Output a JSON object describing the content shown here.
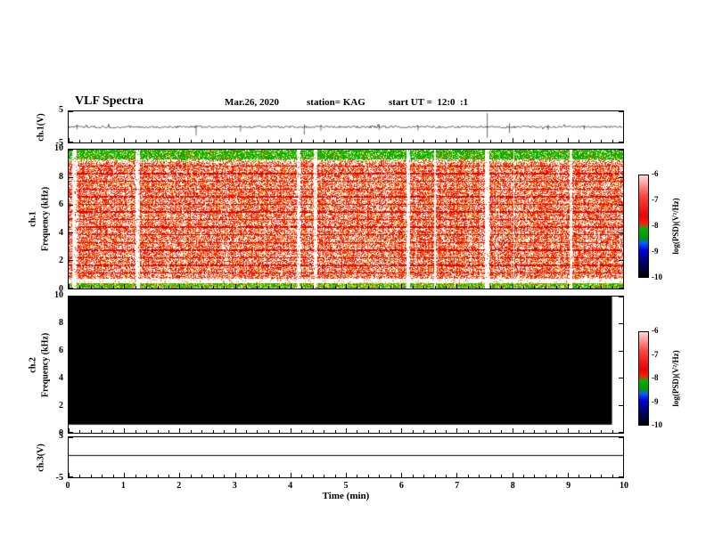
{
  "header": {
    "title": "VLF Spectra",
    "date": "Mar.26, 2020",
    "station": "station= KAG",
    "start_ut": "start UT =  12:0  :1"
  },
  "time_axis": {
    "label": "Time (min)",
    "tick_labels": [
      "0",
      "1",
      "2",
      "3",
      "4",
      "5",
      "6",
      "7",
      "8",
      "9",
      "10"
    ],
    "range": [
      0,
      10
    ],
    "minor_ticks_per_interval": 5
  },
  "panels": {
    "ch1_wave": {
      "ylabel": "ch.1(V)",
      "ytick_labels": [
        "5",
        "-5"
      ],
      "ylim": [
        -5,
        5
      ]
    },
    "ch1_spec": {
      "ylabel_channel": "ch.1",
      "ylabel_axis": "Frequency (kHz)",
      "ytick_labels": [
        "10",
        "8",
        "6",
        "4",
        "2",
        "0"
      ],
      "ylim": [
        0,
        10
      ]
    },
    "ch2_spec": {
      "ylabel_channel": "ch.2",
      "ylabel_axis": "Frequency (kHz)",
      "ytick_labels": [
        "10",
        "8",
        "6",
        "4",
        "2",
        "0"
      ],
      "ylim": [
        0,
        10
      ]
    },
    "ch3_wave": {
      "ylabel": "ch.3(V)",
      "ytick_labels": [
        "5",
        "-5"
      ],
      "ylim": [
        -5,
        5
      ]
    }
  },
  "colorbar": {
    "label": "log(PSD)(V²/Hz)",
    "tick_labels": [
      "-6",
      "-7",
      "-8",
      "-9",
      "-10"
    ],
    "scale_min": -10,
    "scale_max": -6,
    "gradient_stops": [
      [
        0.0,
        "#ffd8d8"
      ],
      [
        0.08,
        "#ff9e9e"
      ],
      [
        0.2,
        "#ff4444"
      ],
      [
        0.4,
        "#ee0000"
      ],
      [
        0.48,
        "#ff2000"
      ],
      [
        0.52,
        "#00b400"
      ],
      [
        0.62,
        "#009600"
      ],
      [
        0.66,
        "#0064ff"
      ],
      [
        0.74,
        "#0000dc"
      ],
      [
        0.84,
        "#000078"
      ],
      [
        1.0,
        "#000000"
      ]
    ]
  },
  "chart_data": [
    {
      "type": "line",
      "panel": "ch.1 waveform",
      "xlabel": "Time (min)",
      "x_range": [
        0,
        10
      ],
      "ylabel": "ch.1(V)",
      "ylim": [
        -5,
        5
      ],
      "baseline": 0,
      "noise_amplitude_v": 0.35,
      "spikes": [
        {
          "x_min": 0.15,
          "up_v": 0.8,
          "down_v": 0.8
        },
        {
          "x_min": 2.3,
          "up_v": 0.6,
          "down_v": 2.8
        },
        {
          "x_min": 3.1,
          "up_v": 0.5,
          "down_v": 1.5
        },
        {
          "x_min": 4.25,
          "up_v": 0.8,
          "down_v": 2.5
        },
        {
          "x_min": 4.55,
          "up_v": 0.6,
          "down_v": 1.2
        },
        {
          "x_min": 5.6,
          "up_v": 0.9,
          "down_v": 0.9
        },
        {
          "x_min": 6.3,
          "up_v": 0.6,
          "down_v": 1.1
        },
        {
          "x_min": 7.55,
          "up_v": 4.5,
          "down_v": 3.5
        },
        {
          "x_min": 7.95,
          "up_v": 1.2,
          "down_v": 2.0
        },
        {
          "x_min": 8.65,
          "up_v": 0.7,
          "down_v": 1.0
        },
        {
          "x_min": 9.3,
          "up_v": 0.5,
          "down_v": 0.8
        }
      ]
    },
    {
      "type": "heatmap",
      "panel": "ch.1 spectrogram",
      "x_range": [
        0,
        10
      ],
      "x_unit": "min",
      "y_range": [
        0,
        10
      ],
      "y_unit": "kHz",
      "value_label": "log(PSD)(V²/Hz)",
      "value_range": [
        -10,
        -6
      ],
      "features": {
        "broadband_band_khz": [
          0.75,
          9.1
        ],
        "broadband_level": "-7 to -6 (red/orange broadband noise)",
        "top_green_band_khz": [
          9.3,
          10.0
        ],
        "bottom_green_band_khz": [
          0,
          0.42
        ],
        "quiet_gap_khz": [
          0.42,
          0.75
        ],
        "vertical_dropout_columns": "narrow white gaps every ~10-20 s",
        "horizontal_line_spacing_khz": 0.55
      }
    },
    {
      "type": "heatmap",
      "panel": "ch.2 spectrogram",
      "x_range": [
        0,
        10
      ],
      "x_unit": "min",
      "y_range": [
        0,
        10
      ],
      "y_unit": "kHz",
      "value_label": "log(PSD)(V²/Hz)",
      "value_range": [
        -10,
        -6
      ],
      "features": {
        "uniform_fill_khz": [
          0.6,
          10
        ],
        "uniform_level": "-10 (black, no signal)",
        "coverage_x_min": [
          0,
          9.8
        ]
      }
    },
    {
      "type": "line",
      "panel": "ch.3 waveform",
      "xlabel": "Time (min)",
      "x_range": [
        0,
        10
      ],
      "ylabel": "ch.3(V)",
      "ylim": [
        -5,
        5
      ],
      "flat_value_v": 0.5
    }
  ]
}
